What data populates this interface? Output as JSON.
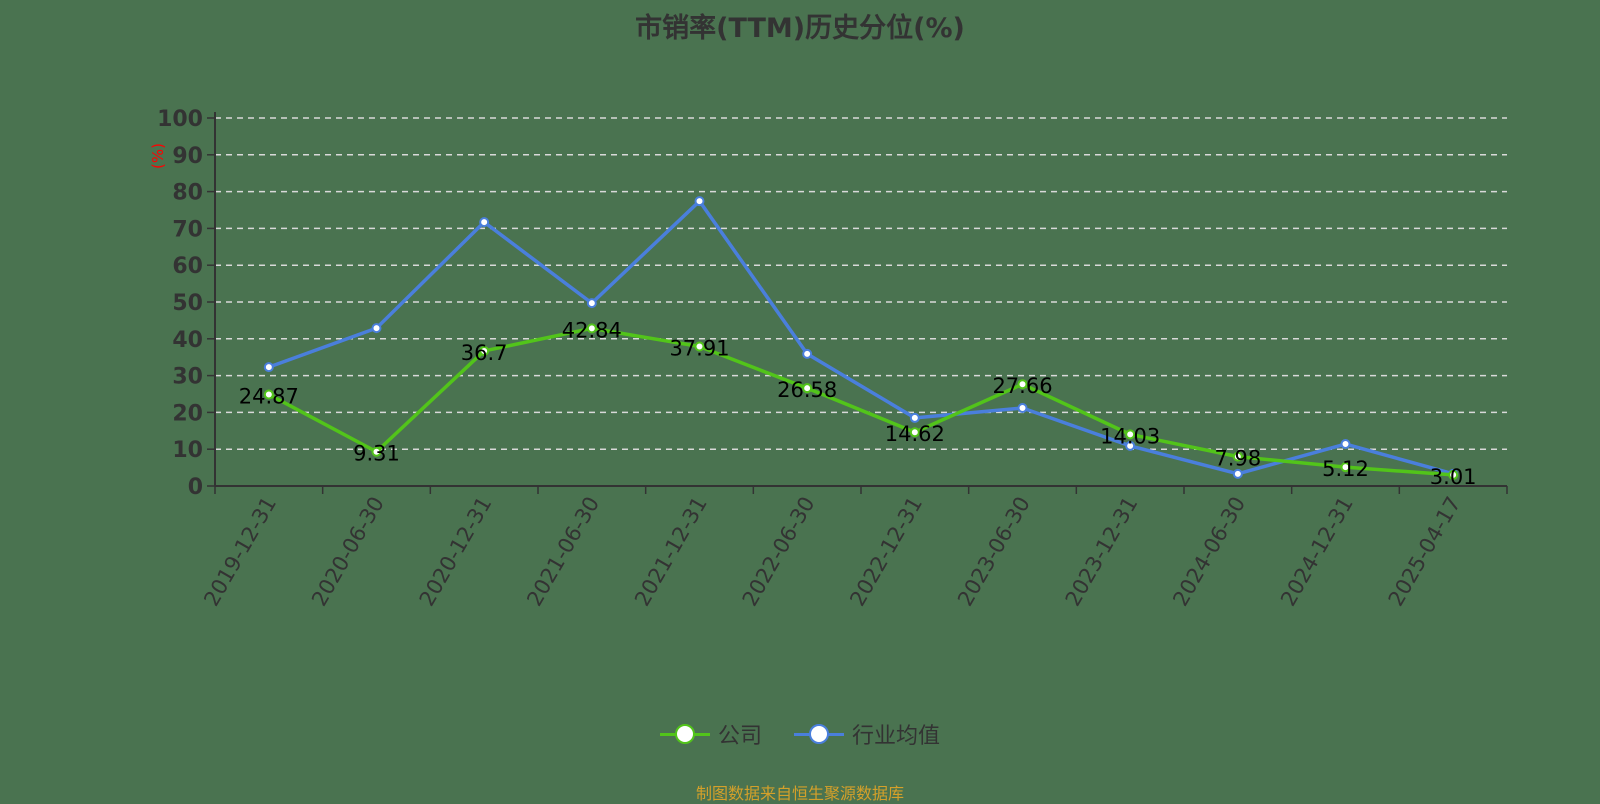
{
  "title": "市销率(TTM)历史分位(%)",
  "y_axis_unit": "(%)",
  "colors": {
    "background": "#4a7350",
    "company": "#52c41a",
    "industry": "#4a7fdc",
    "axis": "#333333",
    "grid": "#d9d9d9",
    "unit_label": "#ff0000",
    "source": "#d4a02a"
  },
  "legend": [
    {
      "name": "公司",
      "color": "#52c41a"
    },
    {
      "name": "行业均值",
      "color": "#4a7fdc"
    }
  ],
  "source_text": "制图数据来自恒生聚源数据库",
  "chart_data": {
    "type": "line",
    "title": "市销率(TTM)历史分位(%)",
    "xlabel": "",
    "ylabel": "(%)",
    "ylim": [
      0,
      100
    ],
    "yticks": [
      0,
      10,
      20,
      30,
      40,
      50,
      60,
      70,
      80,
      90,
      100
    ],
    "grid": true,
    "legend_position": "bottom",
    "categories": [
      "2019-12-31",
      "2020-06-30",
      "2020-12-31",
      "2021-06-30",
      "2021-12-31",
      "2022-06-30",
      "2022-12-31",
      "2023-06-30",
      "2023-12-31",
      "2024-06-30",
      "2024-12-31",
      "2025-04-17"
    ],
    "series": [
      {
        "name": "公司",
        "values": [
          24.87,
          9.31,
          36.7,
          42.84,
          37.91,
          26.58,
          14.62,
          27.66,
          14.03,
          7.98,
          5.12,
          3.01
        ],
        "labeled": true
      },
      {
        "name": "行业均值",
        "values": [
          32.3,
          42.9,
          71.7,
          49.7,
          77.4,
          35.9,
          18.5,
          21.2,
          10.9,
          3.3,
          11.4,
          3.3
        ],
        "labeled": false
      }
    ]
  }
}
